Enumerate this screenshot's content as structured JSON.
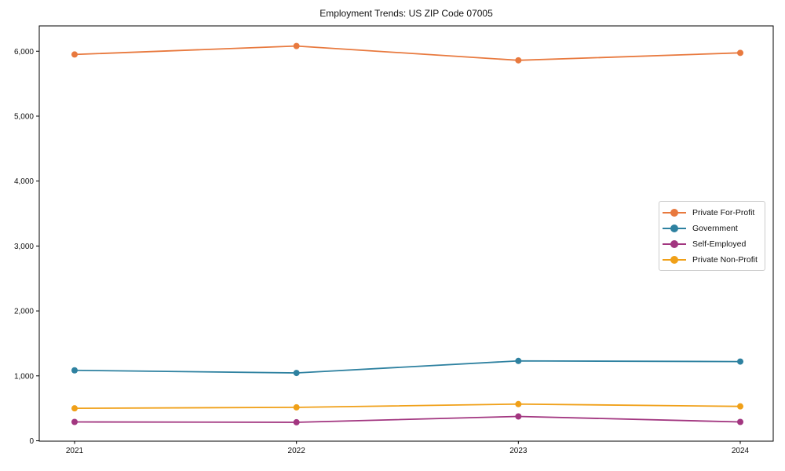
{
  "title": "Employment Trends: US ZIP Code 07005",
  "chart_data": {
    "type": "line",
    "title": "Employment Trends: US ZIP Code 07005",
    "categories": [
      "2021",
      "2022",
      "2023",
      "2024"
    ],
    "series": [
      {
        "name": "Private For-Profit",
        "color": "#e8793e",
        "values": [
          5950,
          6080,
          5860,
          5975
        ]
      },
      {
        "name": "Government",
        "color": "#2e81a0",
        "values": [
          1085,
          1045,
          1230,
          1220
        ]
      },
      {
        "name": "Self-Employed",
        "color": "#a23680",
        "values": [
          290,
          285,
          375,
          290
        ]
      },
      {
        "name": "Private Non-Profit",
        "color": "#f0a018",
        "values": [
          500,
          515,
          565,
          530
        ]
      }
    ],
    "xlabel": "",
    "ylabel": "",
    "ylim": [
      0,
      6390
    ],
    "yticks": [
      0,
      1000,
      2000,
      3000,
      4000,
      5000,
      6000
    ],
    "ytick_labels": [
      "0",
      "1,000",
      "2,000",
      "3,000",
      "4,000",
      "5,000",
      "6,000"
    ],
    "grid": false,
    "legend_position": "center-right",
    "marker": "circle",
    "axis_color": "#000000"
  }
}
